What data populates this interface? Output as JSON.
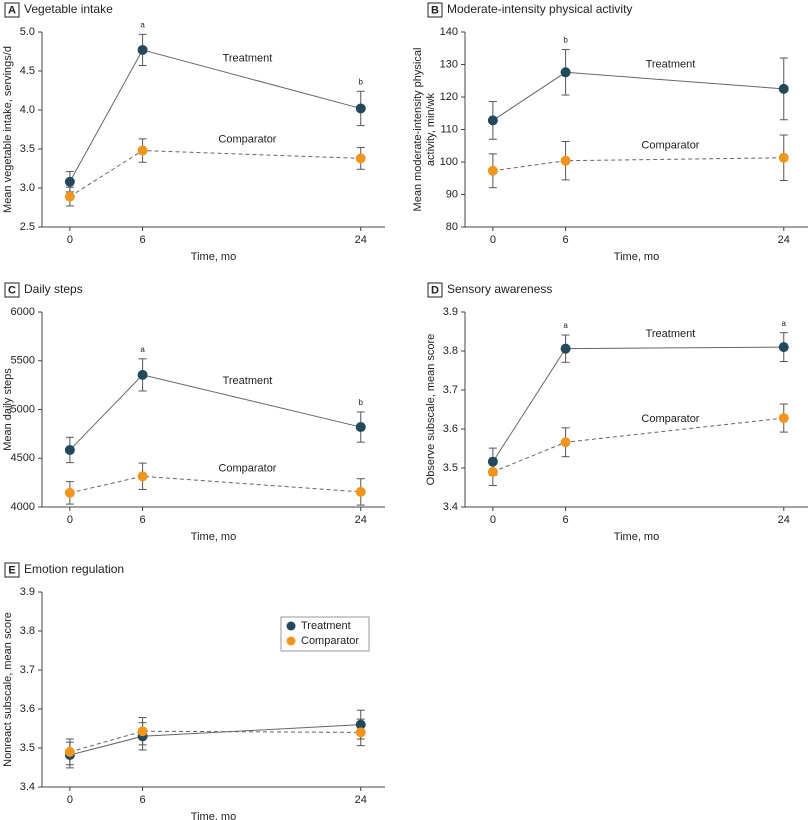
{
  "chart_data": [
    {
      "type": "line",
      "panel": "A",
      "title": "Vegetable intake",
      "xlabel": "Time, mo",
      "ylabel": "Mean vegetable intake, servings/d",
      "x": [
        0,
        6,
        24
      ],
      "xlim": [
        -2.3,
        26
      ],
      "xticks": [
        0,
        6,
        24
      ],
      "ylim": [
        2.5,
        5.0
      ],
      "yticks": [
        2.5,
        {
          "value": 3,
          "label": "3.0"
        },
        3.5,
        {
          "value": 4,
          "label": "4.0"
        },
        4.5,
        {
          "value": 5,
          "label": "5.0"
        }
      ],
      "series": [
        {
          "name": "Treatment",
          "color": "#24495c",
          "line_style": "solid",
          "values": [
            3.08,
            4.77,
            4.02
          ],
          "errors": [
            0.13,
            0.2,
            0.22
          ]
        },
        {
          "name": "Comparator",
          "color": "#f0961e",
          "line_style": "dashed",
          "values": [
            2.89,
            3.48,
            3.38
          ],
          "errors": [
            0.12,
            0.15,
            0.14
          ]
        }
      ],
      "annotations": [
        {
          "text": "a",
          "x": 6
        },
        {
          "text": "b",
          "x": 24
        }
      ],
      "legend": "inline"
    },
    {
      "type": "line",
      "panel": "B",
      "title": "Moderate-intensity physical activity",
      "xlabel": "Time, mo",
      "ylabel": [
        "Mean moderate-intensity physical",
        "activity, min/wk"
      ],
      "x": [
        0,
        6,
        24
      ],
      "xlim": [
        -2.3,
        26
      ],
      "xticks": [
        0,
        6,
        24
      ],
      "ylim": [
        80,
        140
      ],
      "yticks": [
        80,
        90,
        100,
        110,
        120,
        130,
        140
      ],
      "series": [
        {
          "name": "Treatment",
          "color": "#24495c",
          "line_style": "solid",
          "values": [
            112.8,
            127.6,
            122.5
          ],
          "errors": [
            5.8,
            7,
            9.5
          ]
        },
        {
          "name": "Comparator",
          "color": "#f0961e",
          "line_style": "dashed",
          "values": [
            97.3,
            100.4,
            101.3
          ],
          "errors": [
            5.2,
            5.9,
            7
          ]
        }
      ],
      "annotations": [
        {
          "text": "b",
          "x": 6
        }
      ],
      "legend": "inline"
    },
    {
      "type": "line",
      "panel": "C",
      "title": "Daily steps",
      "xlabel": "Time, mo",
      "ylabel": "Mean daily steps",
      "x": [
        0,
        6,
        24
      ],
      "xlim": [
        -2.3,
        26
      ],
      "xticks": [
        0,
        6,
        24
      ],
      "ylim": [
        4000,
        6000
      ],
      "yticks": [
        4000,
        4500,
        5000,
        5500,
        6000
      ],
      "series": [
        {
          "name": "Treatment",
          "color": "#24495c",
          "line_style": "solid",
          "values": [
            4585,
            5355,
            4820
          ],
          "errors": [
            130,
            165,
            155
          ]
        },
        {
          "name": "Comparator",
          "color": "#f0961e",
          "line_style": "dashed",
          "values": [
            4145,
            4315,
            4155
          ],
          "errors": [
            115,
            135,
            135
          ]
        }
      ],
      "annotations": [
        {
          "text": "a",
          "x": 6
        },
        {
          "text": "b",
          "x": 24
        }
      ],
      "legend": "inline"
    },
    {
      "type": "line",
      "panel": "D",
      "title": "Sensory awareness",
      "xlabel": "Time, mo",
      "ylabel": "Observe subscale, mean score",
      "x": [
        0,
        6,
        24
      ],
      "xlim": [
        -2.3,
        26
      ],
      "xticks": [
        0,
        6,
        24
      ],
      "ylim": [
        3.4,
        3.9
      ],
      "yticks": [
        3.4,
        3.5,
        3.6,
        3.7,
        3.8,
        3.9
      ],
      "series": [
        {
          "name": "Treatment",
          "color": "#24495c",
          "line_style": "solid",
          "values": [
            3.516,
            3.806,
            3.81
          ],
          "errors": [
            0.035,
            0.035,
            0.037
          ]
        },
        {
          "name": "Comparator",
          "color": "#f0961e",
          "line_style": "dashed",
          "values": [
            3.49,
            3.566,
            3.628
          ],
          "errors": [
            0.035,
            0.037,
            0.036
          ]
        }
      ],
      "annotations": [
        {
          "text": "a",
          "x": 6
        },
        {
          "text": "a",
          "x": 24
        }
      ],
      "legend": "inline"
    },
    {
      "type": "line",
      "panel": "E",
      "title": "Emotion regulation",
      "xlabel": "Time, mo",
      "ylabel": "Nonreact subscale, mean score",
      "x": [
        0,
        6,
        24
      ],
      "xlim": [
        -2.3,
        26
      ],
      "xticks": [
        0,
        6,
        24
      ],
      "ylim": [
        3.4,
        3.9
      ],
      "yticks": [
        3.4,
        3.5,
        3.6,
        3.7,
        3.8,
        3.9
      ],
      "series": [
        {
          "name": "Treatment",
          "color": "#24495c",
          "line_style": "solid",
          "values": [
            3.482,
            3.53,
            3.56
          ],
          "errors": [
            0.033,
            0.035,
            0.037
          ]
        },
        {
          "name": "Comparator",
          "color": "#f0961e",
          "line_style": "dashed",
          "values": [
            3.49,
            3.543,
            3.54
          ],
          "errors": [
            0.033,
            0.035,
            0.034
          ]
        }
      ],
      "annotations": [],
      "legend": "upper right"
    }
  ]
}
